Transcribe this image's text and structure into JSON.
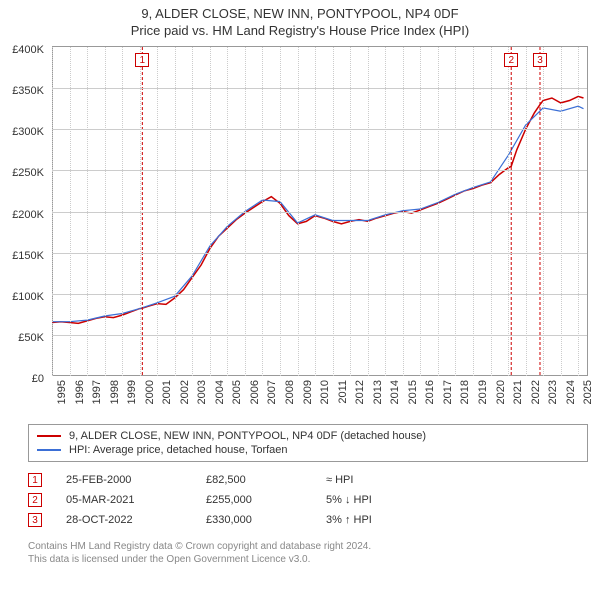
{
  "title_main": "9, ALDER CLOSE, NEW INN, PONTYPOOL, NP4 0DF",
  "title_sub": "Price paid vs. HM Land Registry's House Price Index (HPI)",
  "chart": {
    "type": "line",
    "background_color": "#ffffff",
    "grid_color": "#cccccc",
    "axis_color": "#999999",
    "label_fontsize": 11,
    "x": {
      "min": 1995,
      "max": 2025.5,
      "ticks": [
        1995,
        1996,
        1997,
        1998,
        1999,
        2000,
        2001,
        2002,
        2003,
        2004,
        2005,
        2006,
        2007,
        2008,
        2009,
        2010,
        2011,
        2012,
        2013,
        2014,
        2015,
        2016,
        2017,
        2018,
        2019,
        2020,
        2021,
        2022,
        2023,
        2024,
        2025
      ],
      "tick_labels": [
        "1995",
        "1996",
        "1997",
        "1998",
        "1999",
        "2000",
        "2001",
        "2002",
        "2003",
        "2004",
        "2005",
        "2006",
        "2007",
        "2008",
        "2009",
        "2010",
        "2011",
        "2012",
        "2013",
        "2014",
        "2015",
        "2016",
        "2017",
        "2018",
        "2019",
        "2020",
        "2021",
        "2022",
        "2023",
        "2024",
        "2025"
      ]
    },
    "y": {
      "min": 0,
      "max": 400000,
      "ticks": [
        0,
        50000,
        100000,
        150000,
        200000,
        250000,
        300000,
        350000,
        400000
      ],
      "tick_labels": [
        "£0",
        "£50K",
        "£100K",
        "£150K",
        "£200K",
        "£250K",
        "£300K",
        "£350K",
        "£400K"
      ]
    },
    "series": [
      {
        "id": "property",
        "label": "9, ALDER CLOSE, NEW INN, PONTYPOOL, NP4 0DF (detached house)",
        "color": "#cc0000",
        "line_width": 1.5,
        "data": [
          [
            1995.0,
            65000
          ],
          [
            1995.5,
            66000
          ],
          [
            1996.0,
            65000
          ],
          [
            1996.5,
            64000
          ],
          [
            1997.0,
            67000
          ],
          [
            1997.5,
            70000
          ],
          [
            1998.0,
            72000
          ],
          [
            1998.5,
            71000
          ],
          [
            1999.0,
            74000
          ],
          [
            1999.5,
            78000
          ],
          [
            2000.0,
            82000
          ],
          [
            2000.15,
            82500
          ],
          [
            2000.5,
            85000
          ],
          [
            2001.0,
            88000
          ],
          [
            2001.5,
            87000
          ],
          [
            2002.0,
            95000
          ],
          [
            2002.5,
            105000
          ],
          [
            2003.0,
            120000
          ],
          [
            2003.5,
            135000
          ],
          [
            2004.0,
            155000
          ],
          [
            2004.5,
            170000
          ],
          [
            2005.0,
            180000
          ],
          [
            2005.5,
            190000
          ],
          [
            2006.0,
            198000
          ],
          [
            2006.5,
            205000
          ],
          [
            2007.0,
            212000
          ],
          [
            2007.5,
            218000
          ],
          [
            2008.0,
            210000
          ],
          [
            2008.5,
            195000
          ],
          [
            2009.0,
            185000
          ],
          [
            2009.5,
            188000
          ],
          [
            2010.0,
            195000
          ],
          [
            2010.5,
            192000
          ],
          [
            2011.0,
            188000
          ],
          [
            2011.5,
            185000
          ],
          [
            2012.0,
            188000
          ],
          [
            2012.5,
            190000
          ],
          [
            2013.0,
            188000
          ],
          [
            2013.5,
            192000
          ],
          [
            2014.0,
            195000
          ],
          [
            2014.5,
            198000
          ],
          [
            2015.0,
            200000
          ],
          [
            2015.5,
            198000
          ],
          [
            2016.0,
            202000
          ],
          [
            2016.5,
            206000
          ],
          [
            2017.0,
            210000
          ],
          [
            2017.5,
            215000
          ],
          [
            2018.0,
            220000
          ],
          [
            2018.5,
            225000
          ],
          [
            2019.0,
            228000
          ],
          [
            2019.5,
            232000
          ],
          [
            2020.0,
            235000
          ],
          [
            2020.5,
            245000
          ],
          [
            2021.0,
            253000
          ],
          [
            2021.18,
            255000
          ],
          [
            2021.5,
            275000
          ],
          [
            2022.0,
            300000
          ],
          [
            2022.5,
            320000
          ],
          [
            2022.82,
            330000
          ],
          [
            2023.0,
            335000
          ],
          [
            2023.5,
            338000
          ],
          [
            2024.0,
            332000
          ],
          [
            2024.5,
            335000
          ],
          [
            2025.0,
            340000
          ],
          [
            2025.3,
            338000
          ]
        ]
      },
      {
        "id": "hpi",
        "label": "HPI: Average price, detached house, Torfaen",
        "color": "#3b6fd6",
        "line_width": 1.2,
        "data": [
          [
            1995.0,
            66000
          ],
          [
            1996.0,
            66000
          ],
          [
            1997.0,
            68000
          ],
          [
            1998.0,
            73000
          ],
          [
            1999.0,
            76000
          ],
          [
            2000.0,
            82000
          ],
          [
            2001.0,
            89000
          ],
          [
            2002.0,
            97000
          ],
          [
            2003.0,
            122000
          ],
          [
            2004.0,
            158000
          ],
          [
            2005.0,
            182000
          ],
          [
            2006.0,
            200000
          ],
          [
            2007.0,
            214000
          ],
          [
            2008.0,
            212000
          ],
          [
            2009.0,
            186000
          ],
          [
            2010.0,
            196000
          ],
          [
            2011.0,
            189000
          ],
          [
            2012.0,
            189000
          ],
          [
            2013.0,
            189000
          ],
          [
            2014.0,
            196000
          ],
          [
            2015.0,
            201000
          ],
          [
            2016.0,
            203000
          ],
          [
            2017.0,
            211000
          ],
          [
            2018.0,
            221000
          ],
          [
            2019.0,
            229000
          ],
          [
            2020.0,
            236000
          ],
          [
            2021.0,
            268000
          ],
          [
            2022.0,
            305000
          ],
          [
            2023.0,
            326000
          ],
          [
            2024.0,
            322000
          ],
          [
            2025.0,
            328000
          ],
          [
            2025.3,
            325000
          ]
        ]
      }
    ],
    "markers": [
      {
        "id": "1",
        "x": 2000.15,
        "date": "25-FEB-2000",
        "price": "£82,500",
        "hpi_relation": "≈ HPI"
      },
      {
        "id": "2",
        "x": 2021.18,
        "date": "05-MAR-2021",
        "price": "£255,000",
        "hpi_relation": "5% ↓ HPI"
      },
      {
        "id": "3",
        "x": 2022.82,
        "date": "28-OCT-2022",
        "price": "£330,000",
        "hpi_relation": "3% ↑ HPI"
      }
    ]
  },
  "footnote_line1": "Contains HM Land Registry data © Crown copyright and database right 2024.",
  "footnote_line2": "This data is licensed under the Open Government Licence v3.0."
}
